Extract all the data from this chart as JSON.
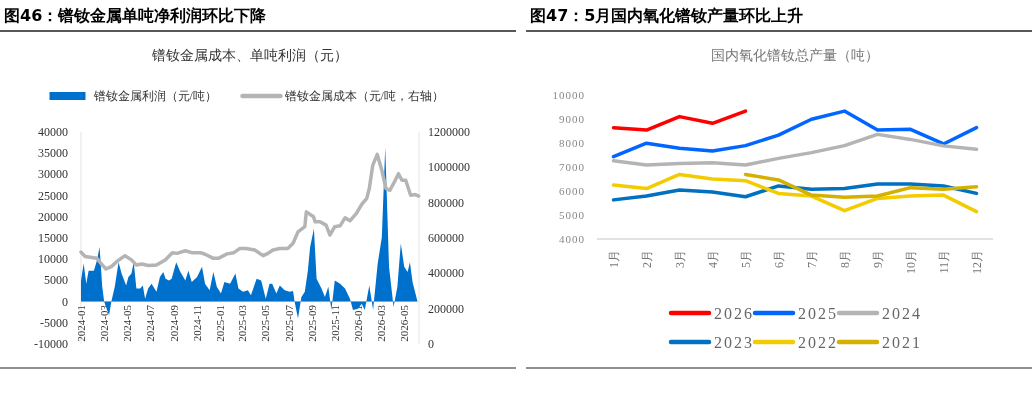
{
  "chart_data": [
    {
      "type": "area",
      "title": "图46：镨钕金属单吨净利润环比下降",
      "subtitle": "镨钕金属成本、单吨利润（元）",
      "legend": "top",
      "xlim": [
        "2024-01-01",
        "2026-06-10"
      ],
      "xticks": [
        "2024-01",
        "2024-03",
        "2024-05",
        "2024-07",
        "2024-09",
        "2024-11",
        "2025-01",
        "2025-03",
        "2025-05",
        "2025-07",
        "2025-09",
        "2025-11",
        "2026-01",
        "2026-03",
        "2026-05"
      ],
      "ylim": [
        -10000,
        40000
      ],
      "yticks": [
        -10000,
        -5000,
        0,
        5000,
        10000,
        15000,
        20000,
        25000,
        30000,
        35000,
        40000
      ],
      "y2lim": [
        0,
        1200000
      ],
      "y2ticks": [
        0,
        200000,
        400000,
        600000,
        800000,
        1000000,
        1200000
      ],
      "series": [
        {
          "name": "镨钕金属利润（元/吨）",
          "color": "#0070cd",
          "x": [
            "2024-01-01",
            "2024-01-08",
            "2024-01-15",
            "2024-01-21",
            "2024-02-04",
            "2024-02-12",
            "2024-02-19",
            "2024-02-26",
            "2024-03-02",
            "2024-03-07",
            "2024-03-15",
            "2024-03-21",
            "2024-03-30",
            "2024-04-09",
            "2024-04-17",
            "2024-04-29",
            "2024-05-05",
            "2024-05-13",
            "2024-05-19",
            "2024-05-26",
            "2024-06-05",
            "2024-06-12",
            "2024-06-18",
            "2024-06-26",
            "2024-07-05",
            "2024-07-18",
            "2024-07-27",
            "2024-08-05",
            "2024-08-11",
            "2024-08-20",
            "2024-08-27",
            "2024-09-08",
            "2024-09-19",
            "2024-10-02",
            "2024-10-10",
            "2024-10-19",
            "2024-11-02",
            "2024-11-15",
            "2024-11-23",
            "2024-12-05",
            "2024-12-15",
            "2024-12-24",
            "2025-01-04",
            "2025-01-13",
            "2025-01-28",
            "2025-02-11",
            "2025-02-19",
            "2025-03-03",
            "2025-03-16",
            "2025-03-24",
            "2025-04-08",
            "2025-04-20",
            "2025-05-02",
            "2025-05-12",
            "2025-05-19",
            "2025-05-30",
            "2025-06-08",
            "2025-06-21",
            "2025-07-04",
            "2025-07-13",
            "2025-07-17",
            "2025-07-26",
            "2025-08-04",
            "2025-08-13",
            "2025-08-21",
            "2025-08-27",
            "2025-09-06",
            "2025-09-13",
            "2025-09-26",
            "2025-10-05",
            "2025-10-14",
            "2025-10-22",
            "2025-10-31",
            "2025-11-14",
            "2025-11-27",
            "2025-12-10",
            "2025-12-18",
            "2026-01-01",
            "2026-01-10",
            "2026-01-18",
            "2026-01-30",
            "2026-02-09",
            "2026-02-21",
            "2026-03-04",
            "2026-03-13",
            "2026-03-23",
            "2026-04-04",
            "2026-04-14",
            "2026-04-23",
            "2026-05-02",
            "2026-05-11",
            "2026-05-17",
            "2026-05-24",
            "2026-06-06"
          ],
          "values": [
            5000,
            9000,
            4200,
            7300,
            7300,
            9700,
            12900,
            3500,
            0,
            -1300,
            -3200,
            0,
            3500,
            9300,
            6600,
            3800,
            5800,
            6600,
            9300,
            3100,
            3100,
            3800,
            700,
            3100,
            4200,
            2300,
            5800,
            7000,
            5400,
            5000,
            5400,
            9300,
            7000,
            5000,
            7300,
            4600,
            5800,
            8200,
            4200,
            2700,
            7000,
            3500,
            1900,
            4600,
            4200,
            6600,
            3100,
            2300,
            2700,
            1500,
            5400,
            5000,
            700,
            4200,
            4200,
            1900,
            3800,
            2700,
            2300,
            2500,
            0,
            -4000,
            1100,
            2300,
            7300,
            12900,
            17200,
            5400,
            3100,
            1100,
            3500,
            -2000,
            5000,
            4200,
            3100,
            700,
            -2000,
            -1600,
            -500,
            -2000,
            3800,
            -2000,
            8900,
            15200,
            36400,
            8200,
            -1300,
            3500,
            13700,
            8200,
            7000,
            9300,
            4600,
            0
          ]
        },
        {
          "name": "镨钕金属成本（元/吨，右轴）",
          "type": "line",
          "axis": "y2",
          "color": "#b4b4b4",
          "x": [
            "2024-01-01",
            "2024-01-12",
            "2024-02-12",
            "2024-02-26",
            "2024-03-07",
            "2024-03-21",
            "2024-04-04",
            "2024-04-26",
            "2024-05-13",
            "2024-05-26",
            "2024-06-09",
            "2024-06-26",
            "2024-07-18",
            "2024-08-10",
            "2024-08-29",
            "2024-09-10",
            "2024-10-02",
            "2024-10-19",
            "2024-11-11",
            "2024-11-23",
            "2024-12-15",
            "2024-12-28",
            "2025-01-20",
            "2025-02-07",
            "2025-02-23",
            "2025-03-11",
            "2025-04-03",
            "2025-04-25",
            "2025-05-08",
            "2025-05-21",
            "2025-06-08",
            "2025-06-29",
            "2025-07-13",
            "2025-07-26",
            "2025-08-13",
            "2025-08-17",
            "2025-09-05",
            "2025-09-09",
            "2025-09-22",
            "2025-10-08",
            "2025-10-18",
            "2025-10-31",
            "2025-11-14",
            "2025-11-27",
            "2025-12-10",
            "2025-12-27",
            "2026-01-10",
            "2026-01-23",
            "2026-01-30",
            "2026-02-08",
            "2026-02-20",
            "2026-03-04",
            "2026-03-15",
            "2026-03-25",
            "2026-04-06",
            "2026-04-17",
            "2026-04-26",
            "2026-05-06",
            "2026-05-19",
            "2026-05-31",
            "2026-06-09"
          ],
          "values": [
            520000,
            495000,
            485000,
            447000,
            425000,
            438000,
            466000,
            500000,
            476000,
            447000,
            453000,
            444000,
            447000,
            476000,
            517000,
            513000,
            528000,
            517000,
            517000,
            508000,
            485000,
            485000,
            510000,
            517000,
            541000,
            541000,
            532000,
            500000,
            513000,
            532000,
            541000,
            541000,
            570000,
            635000,
            664000,
            748000,
            720000,
            692000,
            692000,
            673000,
            617000,
            664000,
            669000,
            714000,
            697000,
            739000,
            791000,
            823000,
            880000,
            1011000,
            1073000,
            983000,
            880000,
            870000,
            917000,
            964000,
            927000,
            927000,
            842000,
            846000,
            837000
          ]
        }
      ]
    },
    {
      "type": "line",
      "title": "图47：5月国内氧化镨钕产量环比上升",
      "subtitle": "国内氧化镨钕总产量（吨）",
      "legend": "bottom",
      "categories": [
        "1月",
        "2月",
        "3月",
        "4月",
        "5月",
        "6月",
        "7月",
        "8月",
        "9月",
        "10月",
        "11月",
        "12月"
      ],
      "ylim": [
        4000,
        10000
      ],
      "yticks": [
        4000,
        5000,
        6000,
        7000,
        8000,
        9000,
        10000
      ],
      "series": [
        {
          "name": "2026",
          "color": "#ff0000",
          "values": [
            8640,
            8540,
            9100,
            8820,
            9330,
            null,
            null,
            null,
            null,
            null,
            null,
            null
          ]
        },
        {
          "name": "2025",
          "color": "#0066ff",
          "values": [
            7430,
            7990,
            7780,
            7670,
            7890,
            8330,
            8990,
            9330,
            8540,
            8570,
            7960,
            8640
          ]
        },
        {
          "name": "2024",
          "color": "#b4b4b4",
          "values": [
            7260,
            7080,
            7150,
            7180,
            7080,
            7360,
            7600,
            7890,
            8360,
            8150,
            7880,
            7740
          ]
        },
        {
          "name": "2023",
          "color": "#0070c0",
          "values": [
            5630,
            5790,
            6040,
            5960,
            5760,
            6210,
            6070,
            6100,
            6290,
            6290,
            6210,
            5900
          ]
        },
        {
          "name": "2022",
          "color": "#f2cc00",
          "values": [
            6250,
            6100,
            6690,
            6500,
            6430,
            5900,
            5790,
            5180,
            5690,
            5790,
            5830,
            5140
          ]
        },
        {
          "name": "2021",
          "color": "#d4b000",
          "values": [
            null,
            null,
            null,
            null,
            6690,
            6460,
            5830,
            5740,
            5790,
            6140,
            6070,
            6180
          ]
        }
      ]
    }
  ]
}
